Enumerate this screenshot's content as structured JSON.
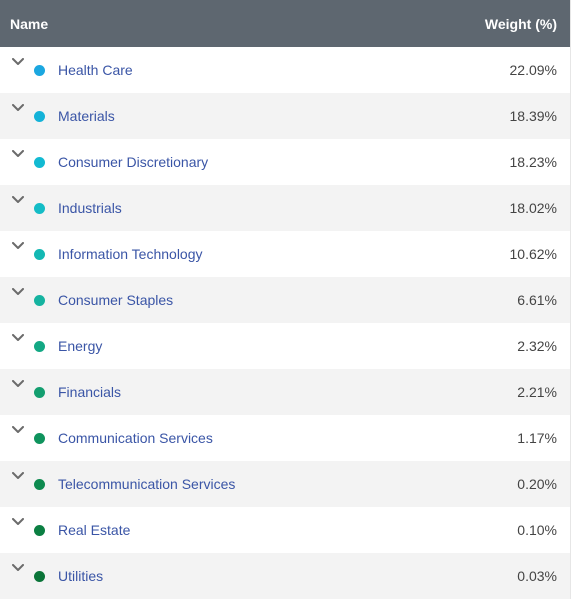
{
  "header": {
    "name_label": "Name",
    "weight_label": "Weight (%)"
  },
  "colors": {
    "header_bg": "#5e6770",
    "link_text": "#3a55a6"
  },
  "rows": [
    {
      "name": "Health Care",
      "weight": "22.09%",
      "dot_color": "#1ba7e0"
    },
    {
      "name": "Materials",
      "weight": "18.39%",
      "dot_color": "#13b2d8"
    },
    {
      "name": "Consumer Discretionary",
      "weight": "18.23%",
      "dot_color": "#12bad2"
    },
    {
      "name": "Industrials",
      "weight": "18.02%",
      "dot_color": "#14bcc6"
    },
    {
      "name": "Information Technology",
      "weight": "10.62%",
      "dot_color": "#13b8b3"
    },
    {
      "name": "Consumer Staples",
      "weight": "6.61%",
      "dot_color": "#15b3a0"
    },
    {
      "name": "Energy",
      "weight": "2.32%",
      "dot_color": "#13a884"
    },
    {
      "name": "Financials",
      "weight": "2.21%",
      "dot_color": "#139e6f"
    },
    {
      "name": "Communication Services",
      "weight": "1.17%",
      "dot_color": "#0f935d"
    },
    {
      "name": "Telecommunication Services",
      "weight": "0.20%",
      "dot_color": "#0d8a4f"
    },
    {
      "name": "Real Estate",
      "weight": "0.10%",
      "dot_color": "#0b7f42"
    },
    {
      "name": "Utilities",
      "weight": "0.03%",
      "dot_color": "#0a7438"
    }
  ]
}
